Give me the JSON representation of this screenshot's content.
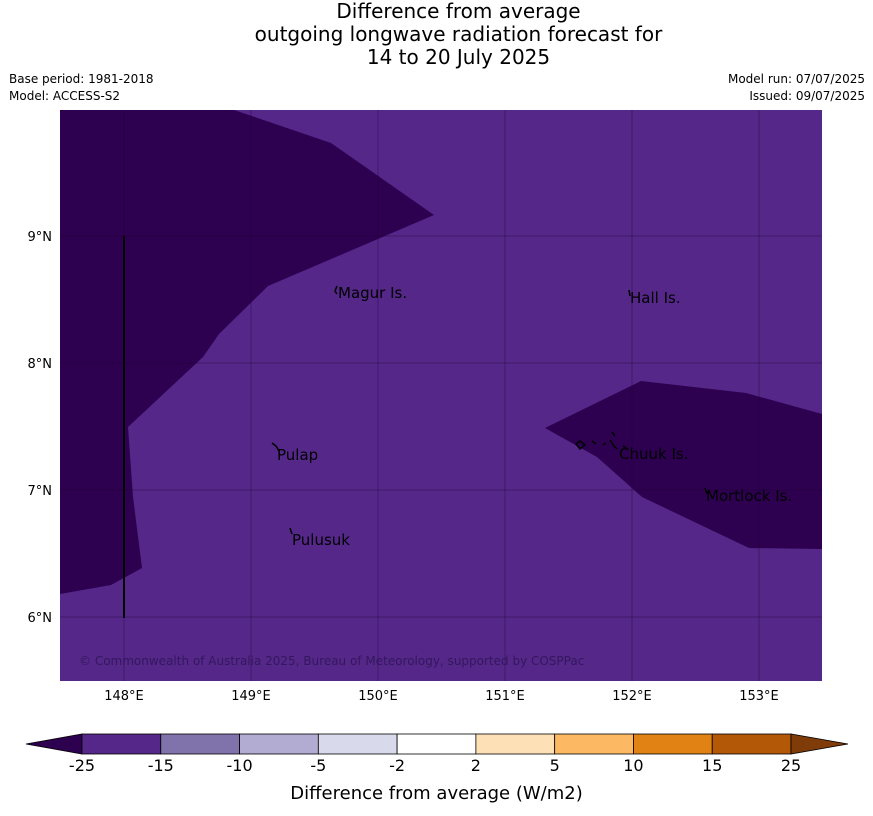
{
  "title": {
    "line1": "Difference from average",
    "line2": "outgoing longwave radiation forecast for",
    "line3": "14 to 20 July 2025"
  },
  "meta": {
    "base_period": "Base period: 1981-2018",
    "model": "Model: ACCESS-S2",
    "model_run": "Model run: 07/07/2025",
    "issued": "Issued: 09/07/2025"
  },
  "map": {
    "lon_labels": [
      "148°E",
      "149°E",
      "150°E",
      "151°E",
      "152°E",
      "153°E"
    ],
    "lat_labels": [
      "9°N",
      "8°N",
      "7°N",
      "6°N"
    ],
    "places": [
      "Magur Is.",
      "Hall Is.",
      "Pulap",
      "Chuuk Is.",
      "Mortlock Is.",
      "Pulusuk"
    ],
    "copyright": "© Commonwealth of Australia 2025, Bureau of Meteorology, supported by COSPPac"
  },
  "colorbar": {
    "ticks": [
      "-25",
      "-15",
      "-10",
      "-5",
      "-2",
      "2",
      "5",
      "10",
      "15",
      "25"
    ],
    "label": "Difference from average (W/m2)",
    "colors": [
      "#2d0050",
      "#542788",
      "#8073ac",
      "#b2abd2",
      "#d8daeb",
      "#ffffff",
      "#fee0b6",
      "#fdb863",
      "#e08214",
      "#b35806",
      "#7f3b08"
    ]
  }
}
